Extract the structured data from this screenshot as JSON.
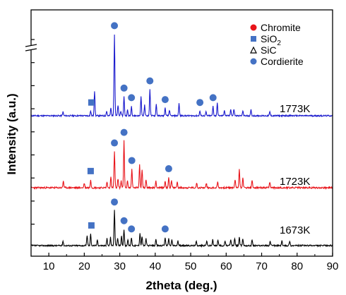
{
  "chart_data": {
    "type": "line",
    "title": "",
    "xlabel": "2theta (deg.)",
    "ylabel": "Intensity (a.u.)",
    "xlim": [
      5,
      90
    ],
    "xticks": [
      10,
      20,
      30,
      40,
      50,
      60,
      70,
      80,
      90
    ],
    "y_tick_labels_shown": false,
    "axis_break": true,
    "legend": {
      "placement": "top-right",
      "entries": [
        {
          "label": "Chromite",
          "marker": "circle",
          "color": "#e8141a"
        },
        {
          "label": "SiO",
          "subscript": "2",
          "marker": "square",
          "color": "#4472c4"
        },
        {
          "label": "SiC",
          "marker": "open-triangle",
          "color": "#000000"
        },
        {
          "label": "Cordierite",
          "marker": "circle",
          "color": "#4472c4"
        }
      ]
    },
    "series": [
      {
        "name": "1773K",
        "color": "#1a1acd",
        "peaks": [
          [
            14.0,
            8
          ],
          [
            21.8,
            10
          ],
          [
            22.9,
            52
          ],
          [
            26.3,
            10
          ],
          [
            27.5,
            16
          ],
          [
            28.5,
            170
          ],
          [
            29.5,
            22
          ],
          [
            30.3,
            10
          ],
          [
            31.2,
            40
          ],
          [
            32.2,
            12
          ],
          [
            33.3,
            20
          ],
          [
            36.0,
            40
          ],
          [
            37.0,
            22
          ],
          [
            38.5,
            55
          ],
          [
            40.3,
            24
          ],
          [
            42.8,
            16
          ],
          [
            44.0,
            12
          ],
          [
            46.7,
            26
          ],
          [
            52.6,
            10
          ],
          [
            54.3,
            8
          ],
          [
            56.3,
            20
          ],
          [
            57.5,
            26
          ],
          [
            59.5,
            12
          ],
          [
            61.3,
            14
          ],
          [
            62.2,
            14
          ],
          [
            64.7,
            10
          ],
          [
            67.0,
            12
          ],
          [
            72.3,
            8
          ]
        ],
        "markers": [
          {
            "x": 22.0,
            "symbol": "square"
          },
          {
            "x": 28.5,
            "symbol": "circle"
          },
          {
            "x": 31.2,
            "symbol": "circle"
          },
          {
            "x": 33.3,
            "symbol": "circle"
          },
          {
            "x": 38.5,
            "symbol": "circle"
          },
          {
            "x": 42.8,
            "symbol": "circle"
          },
          {
            "x": 52.6,
            "symbol": "circle"
          },
          {
            "x": 56.3,
            "symbol": "circle"
          }
        ]
      },
      {
        "name": "1723K",
        "color": "#e8141a",
        "peaks": [
          [
            14.1,
            12
          ],
          [
            20.0,
            8
          ],
          [
            21.8,
            14
          ],
          [
            26.4,
            10
          ],
          [
            27.5,
            18
          ],
          [
            28.5,
            62
          ],
          [
            29.5,
            16
          ],
          [
            30.4,
            12
          ],
          [
            31.2,
            80
          ],
          [
            32.2,
            12
          ],
          [
            33.4,
            32
          ],
          [
            35.6,
            40
          ],
          [
            36.3,
            32
          ],
          [
            37.4,
            14
          ],
          [
            40.2,
            12
          ],
          [
            42.8,
            12
          ],
          [
            43.8,
            18
          ],
          [
            44.6,
            12
          ],
          [
            46.2,
            10
          ],
          [
            51.7,
            8
          ],
          [
            54.4,
            8
          ],
          [
            57.6,
            10
          ],
          [
            62.5,
            14
          ],
          [
            63.7,
            32
          ],
          [
            64.7,
            18
          ],
          [
            67.3,
            12
          ],
          [
            72.3,
            10
          ]
        ],
        "markers": [
          {
            "x": 21.8,
            "symbol": "square"
          },
          {
            "x": 28.5,
            "symbol": "circle"
          },
          {
            "x": 31.2,
            "symbol": "circle"
          },
          {
            "x": 33.4,
            "symbol": "circle"
          },
          {
            "x": 43.8,
            "symbol": "circle"
          }
        ]
      },
      {
        "name": "1673K",
        "color": "#000000",
        "peaks": [
          [
            14.0,
            8
          ],
          [
            20.8,
            18
          ],
          [
            21.8,
            20
          ],
          [
            23.7,
            10
          ],
          [
            26.4,
            12
          ],
          [
            27.4,
            14
          ],
          [
            28.5,
            60
          ],
          [
            29.4,
            12
          ],
          [
            30.5,
            16
          ],
          [
            31.2,
            28
          ],
          [
            32.3,
            10
          ],
          [
            33.3,
            14
          ],
          [
            35.7,
            22
          ],
          [
            36.3,
            16
          ],
          [
            37.4,
            12
          ],
          [
            40.2,
            10
          ],
          [
            42.8,
            14
          ],
          [
            43.8,
            12
          ],
          [
            44.7,
            10
          ],
          [
            46.4,
            8
          ],
          [
            51.6,
            8
          ],
          [
            54.5,
            8
          ],
          [
            56.2,
            10
          ],
          [
            57.7,
            10
          ],
          [
            59.7,
            8
          ],
          [
            61.3,
            10
          ],
          [
            62.4,
            12
          ],
          [
            63.7,
            14
          ],
          [
            64.7,
            12
          ],
          [
            67.3,
            10
          ],
          [
            72.4,
            8
          ],
          [
            75.7,
            8
          ],
          [
            77.9,
            8
          ]
        ],
        "markers": [
          {
            "x": 22.0,
            "symbol": "square"
          },
          {
            "x": 28.5,
            "symbol": "circle"
          },
          {
            "x": 31.2,
            "symbol": "circle"
          },
          {
            "x": 33.3,
            "symbol": "circle"
          },
          {
            "x": 42.8,
            "symbol": "circle"
          }
        ]
      }
    ]
  }
}
